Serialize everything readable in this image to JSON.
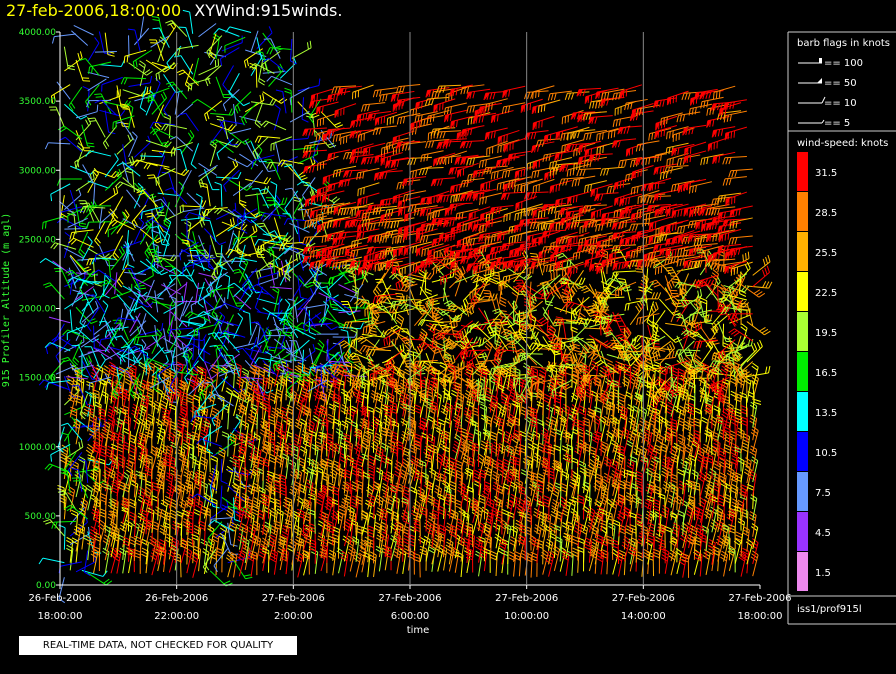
{
  "header": {
    "timestamp": "27-feb-2006,18:00:00",
    "name": "XYWind:915winds."
  },
  "footer": {
    "quality_note": "REAL-TIME DATA, NOT CHECKED FOR QUALITY",
    "source_id": "iss1/prof915l"
  },
  "chart_data": {
    "type": "wind-barb time-height plot",
    "ylabel": "915 Profiler Altitude (m agl)",
    "xlabel": "time",
    "ylim": [
      0,
      4000
    ],
    "y_ticks": [
      "0.00",
      "500.00",
      "1000.00",
      "1500.00",
      "2000.00",
      "2500.00",
      "3000.00",
      "3500.00",
      "4000.00"
    ],
    "x_ticks": [
      {
        "date": "26-Feb-2006",
        "time": "18:00:00"
      },
      {
        "date": "26-Feb-2006",
        "time": "22:00:00"
      },
      {
        "date": "27-Feb-2006",
        "time": "2:00:00"
      },
      {
        "date": "27-Feb-2006",
        "time": "6:00:00"
      },
      {
        "date": "27-Feb-2006",
        "time": "10:00:00"
      },
      {
        "date": "27-Feb-2006",
        "time": "14:00:00"
      },
      {
        "date": "27-Feb-2006",
        "time": "18:00:00"
      }
    ],
    "xlim_hours": [
      0,
      24
    ],
    "grid": "vertical",
    "barb_legend": {
      "title": "barb flags in knots",
      "items": [
        "== 100",
        "== 50",
        "== 10",
        "== 5"
      ]
    },
    "colorbar": {
      "title": "wind-speed: knots",
      "bins": [
        {
          "label": "31.5",
          "color": "#ff0000"
        },
        {
          "label": "28.5",
          "color": "#ff8000"
        },
        {
          "label": "25.5",
          "color": "#ffb000"
        },
        {
          "label": "22.5",
          "color": "#ffff00"
        },
        {
          "label": "19.5",
          "color": "#aaff33"
        },
        {
          "label": "16.5",
          "color": "#00ee00"
        },
        {
          "label": "13.5",
          "color": "#00ffff"
        },
        {
          "label": "10.5",
          "color": "#0000ff"
        },
        {
          "label": "7.5",
          "color": "#6699ff"
        },
        {
          "label": "4.5",
          "color": "#9933ff"
        },
        {
          "label": "1.5",
          "color": "#ee88ee"
        }
      ]
    }
  }
}
